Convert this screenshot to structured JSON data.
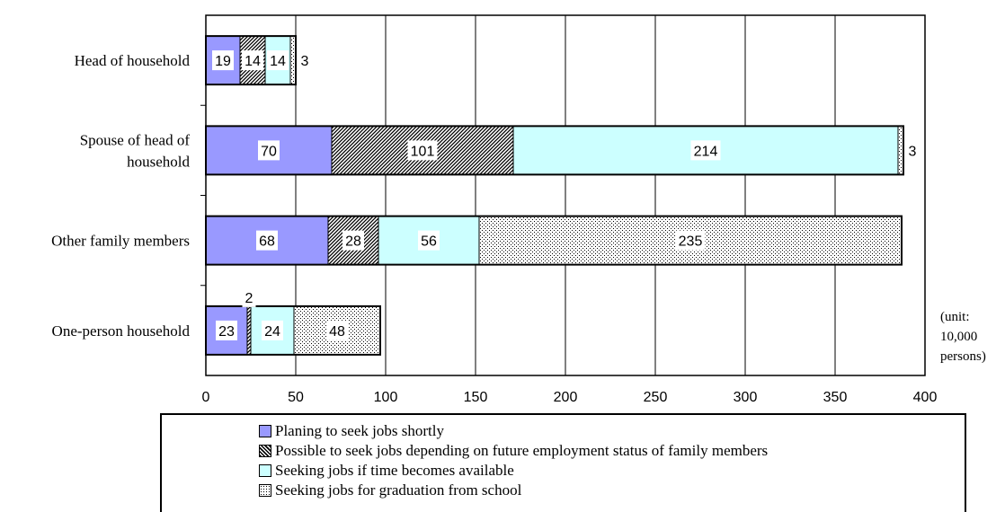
{
  "chart_data": {
    "type": "bar",
    "orientation": "horizontal",
    "stacked": true,
    "categories": [
      "Head of household",
      "Spouse of head of household",
      "Other family members",
      "One-person household"
    ],
    "category_label_lines": [
      [
        "Head of household"
      ],
      [
        "Spouse of head of",
        "household"
      ],
      [
        "Other family members"
      ],
      [
        "One-person household"
      ]
    ],
    "series": [
      {
        "name": "Planing to seek jobs shortly",
        "values": [
          19,
          70,
          68,
          23
        ],
        "color": "#9999ff",
        "pattern": "solid"
      },
      {
        "name": "Possible to seek jobs depending on future employment status of family members",
        "values": [
          14,
          101,
          28,
          2
        ],
        "color": "#ffffff",
        "pattern": "crosshatch"
      },
      {
        "name": "Seeking jobs if time becomes available",
        "values": [
          14,
          214,
          56,
          24
        ],
        "color": "#ccffff",
        "pattern": "solid"
      },
      {
        "name": "Seeking jobs for graduation from school",
        "values": [
          3,
          3,
          235,
          48
        ],
        "color": "#ffffff",
        "pattern": "dots"
      }
    ],
    "xlim": [
      0,
      400
    ],
    "x_ticks": [
      "0",
      "50",
      "100",
      "150",
      "200",
      "250",
      "300",
      "350",
      "400"
    ],
    "grid": "vertical",
    "legend_position": "bottom",
    "unit_note": [
      "(unit:",
      "10,000",
      "persons)"
    ]
  }
}
